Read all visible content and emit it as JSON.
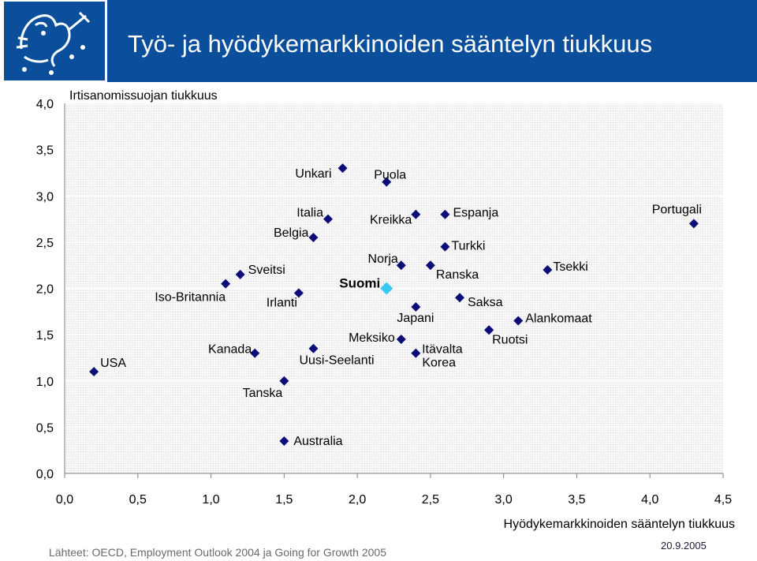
{
  "header": {
    "title": "Työ- ja hyödykemarkkinoiden sääntelyn tiukkuus"
  },
  "footer": {
    "source": "Lähteet: OECD, Employment Outlook 2004 ja Going for Growth 2005",
    "date": "20.9.2005"
  },
  "colors": {
    "header_blue": "#0b4f9c",
    "marker": "#0d0d7a",
    "highlight_marker": "#38c8f0"
  },
  "icons": {
    "logo": "finnish-lion-coat-of-arms-icon"
  },
  "chart_data": {
    "type": "scatter",
    "title": "",
    "xlabel": "Hyödykemarkkinoiden sääntelyn tiukkuus",
    "ylabel": "Irtisanomissuojan tiukkuus",
    "xlim": [
      0,
      4.5
    ],
    "ylim": [
      0,
      4.0
    ],
    "x_ticks": [
      "0,0",
      "0,5",
      "1,0",
      "1,5",
      "2,0",
      "2,5",
      "3,0",
      "3,5",
      "4,0",
      "4,5"
    ],
    "y_ticks": [
      "0,0",
      "0,5",
      "1,0",
      "1,5",
      "2,0",
      "2,5",
      "3,0",
      "3,5",
      "4,0"
    ],
    "grid": "horizontal",
    "legend": "none",
    "points": [
      {
        "label": "USA",
        "x": 0.2,
        "y": 1.1
      },
      {
        "label": "Kanada",
        "x": 1.3,
        "y": 1.3
      },
      {
        "label": "Tanska",
        "x": 1.5,
        "y": 1.0
      },
      {
        "label": "Uusi-Seelanti",
        "x": 1.7,
        "y": 1.35
      },
      {
        "label": "Iso-Britannia",
        "x": 1.1,
        "y": 2.05
      },
      {
        "label": "Sveitsi",
        "x": 1.2,
        "y": 2.15
      },
      {
        "label": "Irlanti",
        "x": 1.6,
        "y": 1.95
      },
      {
        "label": "Belgia",
        "x": 1.7,
        "y": 2.55
      },
      {
        "label": "Italia",
        "x": 1.8,
        "y": 2.75
      },
      {
        "label": "Unkari",
        "x": 1.9,
        "y": 3.3
      },
      {
        "label": "Puola",
        "x": 2.2,
        "y": 3.15
      },
      {
        "label": "Suomi",
        "x": 2.2,
        "y": 2.0,
        "highlight": true
      },
      {
        "label": "Norja",
        "x": 2.3,
        "y": 2.25
      },
      {
        "label": "Kreikka",
        "x": 2.4,
        "y": 2.8
      },
      {
        "label": "Meksiko",
        "x": 2.3,
        "y": 1.45
      },
      {
        "label": "Korea",
        "x": 2.4,
        "y": 1.3
      },
      {
        "label": "Japani",
        "x": 2.4,
        "y": 1.8
      },
      {
        "label": "Ranska",
        "x": 2.5,
        "y": 2.25
      },
      {
        "label": "Espanja",
        "x": 2.6,
        "y": 2.8
      },
      {
        "label": "Turkki",
        "x": 2.6,
        "y": 2.45
      },
      {
        "label": "Saksa",
        "x": 2.7,
        "y": 1.9
      },
      {
        "label": "Itävalta",
        "x": 2.9,
        "y": 1.55
      },
      {
        "label": "Ruotsi",
        "x": 2.9,
        "y": 1.55
      },
      {
        "label": "Alankomaat",
        "x": 3.1,
        "y": 1.65
      },
      {
        "label": "Tsekki",
        "x": 3.3,
        "y": 2.2
      },
      {
        "label": "Portugali",
        "x": 4.3,
        "y": 2.7
      },
      {
        "label": "Australia",
        "x": 1.5,
        "y": 0.35
      }
    ]
  }
}
